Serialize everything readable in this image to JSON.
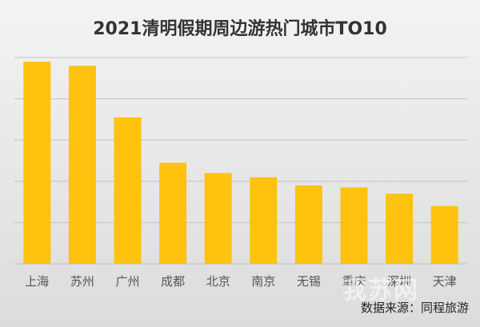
{
  "title": "2021清明假期周边游热门城市TO10",
  "source_note": "数据来源：同程旅游",
  "watermark": "我苏网",
  "colors": {
    "bar": "#ffc20e",
    "grid": "#c4c4c4",
    "axis": "#bfbfbf"
  },
  "chart_data": {
    "type": "bar",
    "title": "2021清明假期周边游热门城市TO10",
    "categories": [
      "上海",
      "苏州",
      "广州",
      "成都",
      "北京",
      "南京",
      "无锡",
      "重庆",
      "深圳",
      "天津"
    ],
    "values": [
      4.9,
      4.8,
      3.55,
      2.45,
      2.2,
      2.1,
      1.9,
      1.85,
      1.7,
      1.4
    ],
    "ylim": [
      0,
      5
    ],
    "grid": true,
    "legend": "none",
    "xlabel": "",
    "ylabel": ""
  }
}
